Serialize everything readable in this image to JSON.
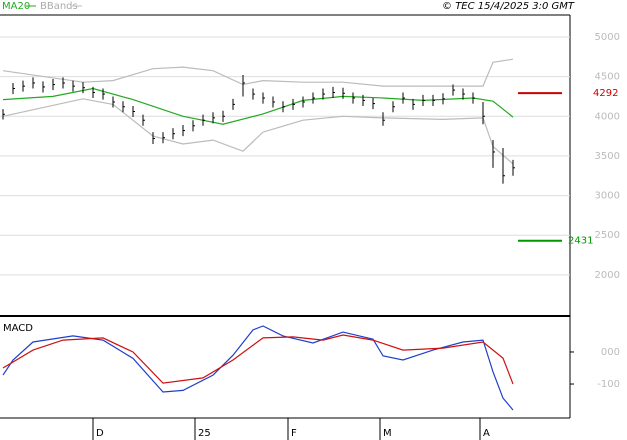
{
  "header": {
    "legend_ma": "MA20",
    "legend_bb": "BBands",
    "stamp": "© TEC 15/4/2025 3:0 GMT"
  },
  "chart_data": [
    {
      "type": "hlc",
      "xlim": [
        -0.6,
        113.4
      ],
      "ylim": [
        1494,
        5277
      ],
      "yticks": [
        2000,
        2500,
        3000,
        3500,
        4000,
        4500,
        5000
      ],
      "grid": true,
      "color": "#000000",
      "x": [
        0,
        2,
        4,
        6,
        8,
        10,
        12,
        14,
        16,
        18,
        20,
        22,
        24,
        26,
        28,
        30,
        32,
        34,
        36,
        38,
        40,
        42,
        44,
        46,
        48,
        50,
        52,
        54,
        56,
        58,
        60,
        62,
        64,
        66,
        68,
        70,
        72,
        74,
        76,
        78,
        80,
        82,
        84,
        86,
        88,
        90,
        92,
        94,
        96,
        98,
        100,
        102
      ],
      "high": [
        4090,
        4420,
        4450,
        4490,
        4440,
        4470,
        4490,
        4450,
        4430,
        4370,
        4350,
        4250,
        4190,
        4130,
        4020,
        3800,
        3800,
        3850,
        3890,
        3950,
        4020,
        4050,
        4070,
        4220,
        4520,
        4350,
        4300,
        4250,
        4190,
        4220,
        4250,
        4300,
        4350,
        4370,
        4360,
        4300,
        4270,
        4230,
        4050,
        4190,
        4300,
        4220,
        4270,
        4270,
        4290,
        4400,
        4350,
        4300,
        4180,
        3700,
        3600,
        3450
      ],
      "low": [
        3960,
        4280,
        4310,
        4350,
        4300,
        4330,
        4350,
        4310,
        4290,
        4230,
        4210,
        4110,
        4050,
        3990,
        3880,
        3650,
        3660,
        3710,
        3750,
        3810,
        3880,
        3910,
        3930,
        4080,
        4250,
        4210,
        4160,
        4110,
        4050,
        4080,
        4110,
        4160,
        4210,
        4230,
        4220,
        4160,
        4130,
        4090,
        3880,
        4050,
        4160,
        4080,
        4130,
        4130,
        4150,
        4260,
        4210,
        4160,
        3900,
        3350,
        3150,
        3250
      ],
      "close": [
        4025,
        4350,
        4380,
        4420,
        4370,
        4400,
        4420,
        4380,
        4360,
        4300,
        4280,
        4180,
        4120,
        4060,
        3950,
        3720,
        3730,
        3780,
        3820,
        3880,
        3950,
        3980,
        4000,
        4150,
        4420,
        4280,
        4230,
        4180,
        4120,
        4150,
        4180,
        4230,
        4280,
        4300,
        4290,
        4230,
        4200,
        4160,
        3950,
        4120,
        4230,
        4150,
        4200,
        4200,
        4220,
        4330,
        4280,
        4230,
        4000,
        3550,
        3250,
        3350
      ],
      "overlays": [
        {
          "name": "MA20",
          "color": "#22aa22",
          "x": [
            0,
            10,
            18,
            26,
            36,
            44,
            52,
            60,
            68,
            76,
            84,
            94,
            98,
            102
          ],
          "values": [
            4210,
            4250,
            4350,
            4210,
            4000,
            3900,
            4030,
            4200,
            4250,
            4230,
            4200,
            4230,
            4190,
            3990
          ]
        },
        {
          "name": "BBands",
          "color": "#bbbbbb",
          "x": [
            0,
            16,
            22,
            30,
            36,
            42,
            48,
            52,
            60,
            68,
            76,
            88,
            96,
            98,
            102
          ],
          "upper": [
            4575,
            4430,
            4450,
            4600,
            4620,
            4575,
            4400,
            4450,
            4430,
            4430,
            4380,
            4380,
            4380,
            4680,
            4720
          ],
          "lower": [
            4000,
            4220,
            4150,
            3750,
            3650,
            3700,
            3560,
            3800,
            3950,
            4000,
            3980,
            3960,
            3980,
            3620,
            3400
          ]
        }
      ],
      "levels": [
        {
          "value": 4292,
          "color": "#cc0000"
        },
        {
          "value": 2431,
          "color": "#009900"
        }
      ]
    },
    {
      "type": "line",
      "title": "MACD",
      "xlim": [
        -0.6,
        113.4
      ],
      "ylim": [
        -206,
        106
      ],
      "yticks": [
        {
          "value": 0,
          "label": "000"
        },
        -100
      ],
      "xticks": [
        {
          "value": 18,
          "label": "D"
        },
        {
          "value": 38.4,
          "label": "25"
        },
        {
          "value": 57,
          "label": "F"
        },
        {
          "value": 75.4,
          "label": "M"
        },
        {
          "value": 95.4,
          "label": "A"
        }
      ],
      "series": [
        {
          "color": "#1f3fcc",
          "x": [
            0,
            2,
            6,
            14,
            20,
            26,
            32,
            36,
            42,
            46,
            50,
            52,
            56,
            62,
            68,
            74,
            76,
            80,
            86,
            92,
            96,
            98,
            100,
            102
          ],
          "values": [
            -72,
            -25,
            31,
            50,
            37,
            -20,
            -125,
            -120,
            -72,
            -10,
            69,
            81,
            50,
            28,
            62,
            40,
            -12,
            -25,
            6,
            31,
            37,
            -62,
            -144,
            -181
          ]
        },
        {
          "color": "#cc1111",
          "x": [
            0,
            6,
            12,
            20,
            26,
            32,
            40,
            46,
            52,
            58,
            64,
            68,
            74,
            80,
            88,
            96,
            100,
            102
          ],
          "values": [
            -50,
            6,
            37,
            44,
            0,
            -97,
            -81,
            -25,
            44,
            47,
            37,
            53,
            37,
            6,
            12,
            31,
            -19,
            -100
          ]
        }
      ]
    }
  ]
}
